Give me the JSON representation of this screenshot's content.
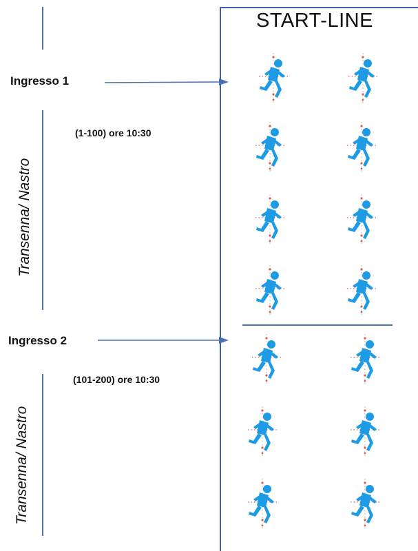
{
  "header": {
    "title": "START-LINE"
  },
  "entrances": [
    {
      "label": "Ingresso 1",
      "slot": "(1-100) ore 10:30"
    },
    {
      "label": "Ingresso 2",
      "slot": "(101-200) ore 10:30"
    }
  ],
  "barriers": [
    {
      "label": "Transenna/ Nastro"
    },
    {
      "label": "Transenna/ Nastro"
    }
  ],
  "runner_icon": "runner-icon",
  "colors": {
    "runner": "#1e9be4",
    "lines": "#4a6fb3",
    "dots": "#e25b4b"
  }
}
